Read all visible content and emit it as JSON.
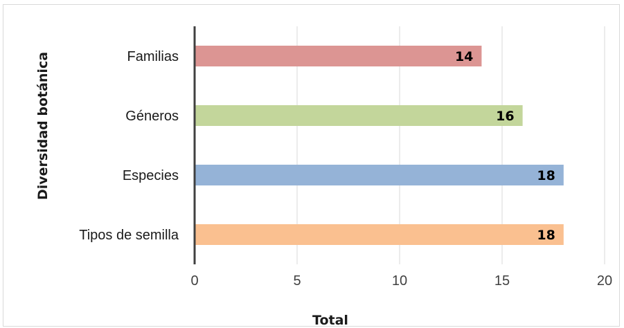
{
  "chart_data": {
    "type": "bar",
    "orientation": "horizontal",
    "categories": [
      "Familias",
      "Géneros",
      "Especies",
      "Tipos de semilla"
    ],
    "values": [
      14,
      16,
      18,
      18
    ],
    "colors": [
      "#dc9593",
      "#c3d69b",
      "#95b3d7",
      "#fac090"
    ],
    "data_labels": [
      "14",
      "16",
      "18",
      "18"
    ],
    "xlabel": "Total",
    "ylabel": "Diversidad botánica",
    "xlim": [
      0,
      20
    ],
    "xticks": [
      "0",
      "5",
      "10",
      "15",
      "20"
    ],
    "grid": "vertical"
  }
}
